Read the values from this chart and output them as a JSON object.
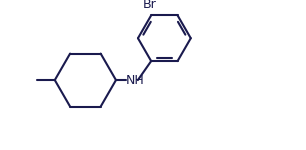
{
  "bond_color": "#1a1a4e",
  "bg_color": "#ffffff",
  "line_width": 1.5,
  "font_size_br": 9,
  "font_size_nh": 9,
  "br_label": "Br",
  "nh_label": "NH",
  "figure_width": 3.06,
  "figure_height": 1.5,
  "dpi": 100,
  "xlim": [
    0.0,
    9.2
  ],
  "ylim": [
    0.5,
    4.8
  ]
}
